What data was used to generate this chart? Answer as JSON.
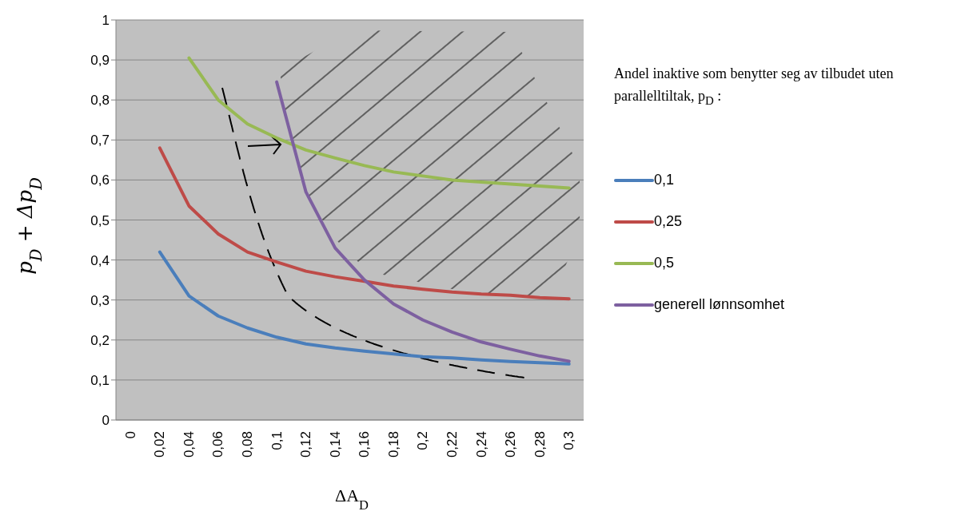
{
  "chart_data": {
    "type": "line",
    "xlabel": "ΔA$_{D}$",
    "ylabel": "p$_{D}$ + Δp$_{D}$",
    "legend_title": "Andel inaktive som benytter seg av tilbudet uten parallelltiltak, p$_{D}$ :",
    "categories": [
      "0",
      "0,02",
      "0,04",
      "0,06",
      "0,08",
      "0,1",
      "0,12",
      "0,14",
      "0,16",
      "0,18",
      "0,2",
      "0,22",
      "0,24",
      "0,26",
      "0,28",
      "0,3"
    ],
    "series": [
      {
        "name": "0,1",
        "color": "#4a7ebb",
        "values": [
          null,
          0.42,
          0.31,
          0.26,
          0.23,
          0.207,
          0.19,
          0.18,
          0.172,
          0.165,
          0.158,
          0.155,
          0.15,
          0.146,
          0.143,
          0.14
        ]
      },
      {
        "name": "0,25",
        "color": "#be4b48",
        "values": [
          null,
          0.68,
          0.535,
          0.465,
          0.42,
          0.395,
          0.372,
          0.358,
          0.347,
          0.335,
          0.327,
          0.32,
          0.315,
          0.312,
          0.306,
          0.303
        ]
      },
      {
        "name": "0,5",
        "color": "#98b954",
        "values": [
          null,
          null,
          0.905,
          0.8,
          0.74,
          0.705,
          0.675,
          0.655,
          0.636,
          0.62,
          0.61,
          0.6,
          0.595,
          0.59,
          0.585,
          0.58
        ]
      },
      {
        "name": "generell lønnsomhet",
        "color": "#7d60a0",
        "values": [
          null,
          null,
          null,
          null,
          null,
          0.845,
          0.57,
          0.43,
          0.35,
          0.29,
          0.25,
          0.22,
          0.195,
          0.177,
          0.16,
          0.147
        ]
      }
    ],
    "ylim": [
      0,
      1
    ],
    "yticks": [
      {
        "value": 0,
        "label": "0"
      },
      {
        "value": 0.1,
        "label": "0,1"
      },
      {
        "value": 0.2,
        "label": "0,2"
      },
      {
        "value": 0.3,
        "label": "0,3"
      },
      {
        "value": 0.4,
        "label": "0,4"
      },
      {
        "value": 0.5,
        "label": "0,5"
      },
      {
        "value": 0.6,
        "label": "0,6"
      },
      {
        "value": 0.7,
        "label": "0,7"
      },
      {
        "value": 0.8,
        "label": "0,8"
      },
      {
        "value": 0.9,
        "label": "0,9"
      },
      {
        "value": 1,
        "label": "1"
      }
    ],
    "grid": "y",
    "legend": "right",
    "marker": "none",
    "line_style": "solid"
  }
}
